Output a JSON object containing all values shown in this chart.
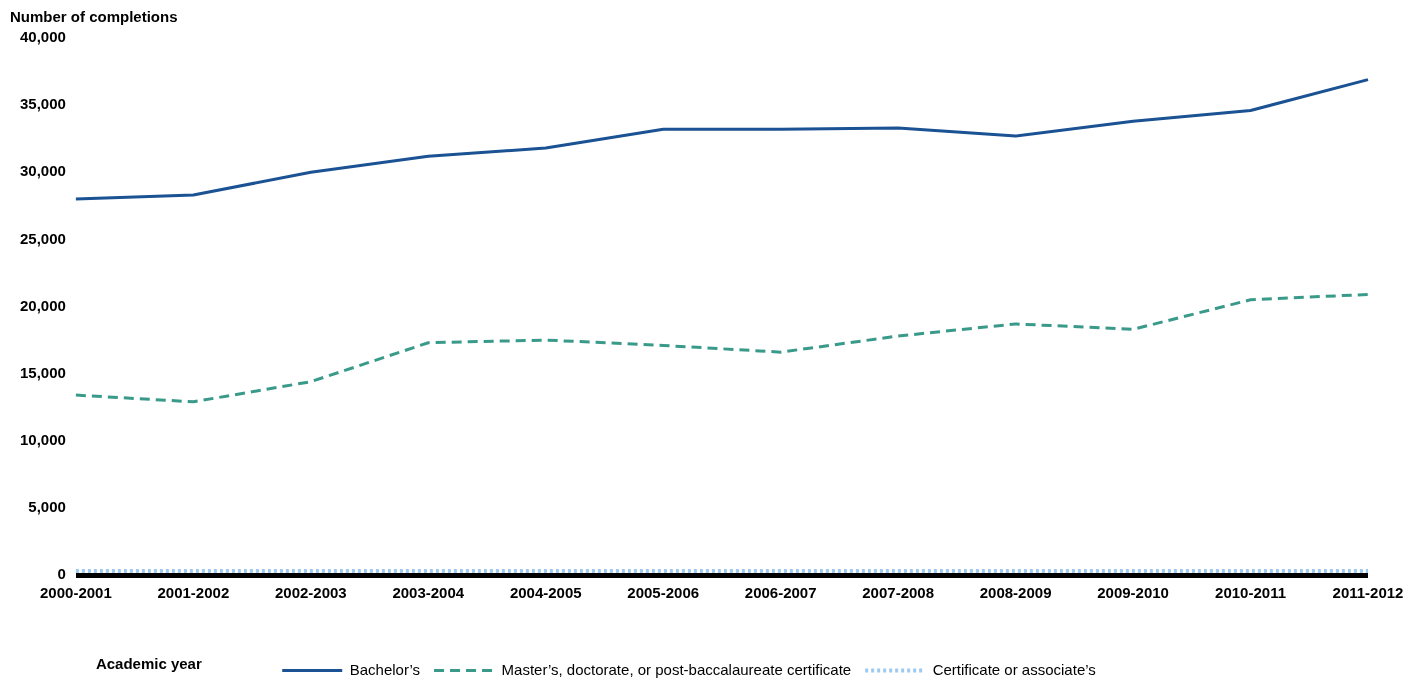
{
  "chart_data": {
    "type": "line",
    "xlabel": "Academic year",
    "ylabel": "Number of completions",
    "categories": [
      "2000-2001",
      "2001-2002",
      "2002-2003",
      "2003-2004",
      "2004-2005",
      "2005-2006",
      "2006-2007",
      "2007-2008",
      "2008-2009",
      "2009-2010",
      "2010-2011",
      "2011-2012"
    ],
    "series": [
      {
        "name": "Bachelor’s",
        "color": "#1a5293",
        "line_style": "solid",
        "values": [
          28000,
          28300,
          30000,
          31200,
          31800,
          33200,
          33200,
          33300,
          32700,
          33800,
          34600,
          36900
        ]
      },
      {
        "name": "Master’s, doctorate, or post-baccalaureate certificate",
        "color": "#3a9a8a",
        "line_style": "dashed",
        "values": [
          13400,
          12900,
          14400,
          17300,
          17500,
          17100,
          16600,
          17800,
          18700,
          18300,
          20500,
          20900
        ]
      },
      {
        "name": "Certificate or associate’s",
        "color": "#9ec9f0",
        "line_style": "dotted",
        "values": [
          300,
          300,
          300,
          300,
          300,
          300,
          300,
          300,
          300,
          300,
          300,
          300
        ]
      }
    ],
    "ylim": [
      0,
      40000
    ],
    "yticks": [
      0,
      {
        "value": 5000,
        "label": "5,000"
      },
      {
        "value": 10000,
        "label": "10,000"
      },
      {
        "value": 15000,
        "label": "15,000"
      },
      {
        "value": 20000,
        "label": "20,000"
      },
      {
        "value": 25000,
        "label": "25,000"
      },
      {
        "value": 30000,
        "label": "30,000"
      },
      {
        "value": 35000,
        "label": "35,000"
      },
      {
        "value": 40000,
        "label": "40,000"
      }
    ],
    "grid": false,
    "legend": "bottom",
    "marker": "none"
  }
}
